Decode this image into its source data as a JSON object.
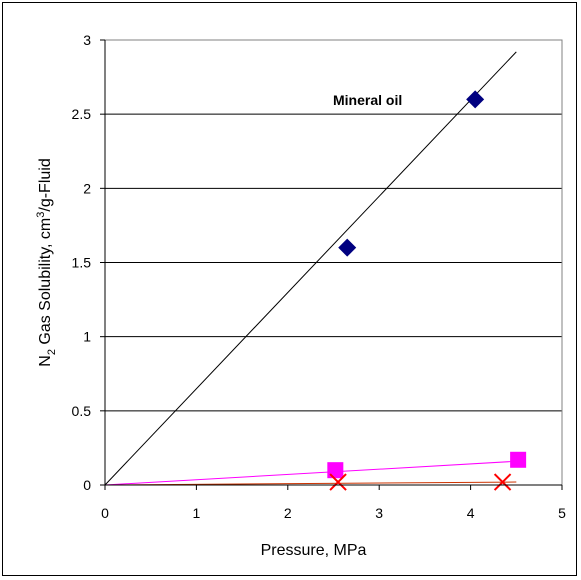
{
  "chart_data": {
    "type": "scatter",
    "xlabel": "Pressure, MPa",
    "ylabel_parts": {
      "a": "N",
      "b": "2",
      "c": " Gas Solubility, cm",
      "d": "3",
      "e": "/g-Fluid"
    },
    "xlim": [
      0,
      5
    ],
    "ylim": [
      0,
      3
    ],
    "x_ticks": [
      0,
      1,
      2,
      3,
      4,
      5
    ],
    "y_ticks": [
      0,
      0.5,
      1,
      1.5,
      2,
      2.5,
      3
    ],
    "y_tick_labels": [
      "0",
      "0.5",
      "1",
      "1.5",
      "2",
      "2.5",
      "3"
    ],
    "grid": "horizontal",
    "legend": "none",
    "annotation": "Mineral oil",
    "series": [
      {
        "marker": "diamond",
        "color": "#000080",
        "points": [
          [
            2.65,
            1.6
          ],
          [
            4.05,
            2.6
          ]
        ],
        "fit": {
          "x": [
            0,
            4.5
          ],
          "y": [
            0,
            2.92
          ],
          "color": "#000000"
        }
      },
      {
        "marker": "square",
        "color": "#ff00ff",
        "points": [
          [
            2.52,
            0.1
          ],
          [
            4.52,
            0.17
          ]
        ],
        "fit": {
          "x": [
            0,
            4.5
          ],
          "y": [
            0,
            0.16
          ],
          "color": "#ff00ff"
        }
      },
      {
        "marker": "x",
        "color": "#ff0000",
        "points": [
          [
            2.55,
            0.02
          ],
          [
            4.35,
            0.02
          ]
        ],
        "fit": {
          "x": [
            0,
            4.5
          ],
          "y": [
            0,
            0.02
          ],
          "color": "#cc3300"
        }
      }
    ]
  }
}
